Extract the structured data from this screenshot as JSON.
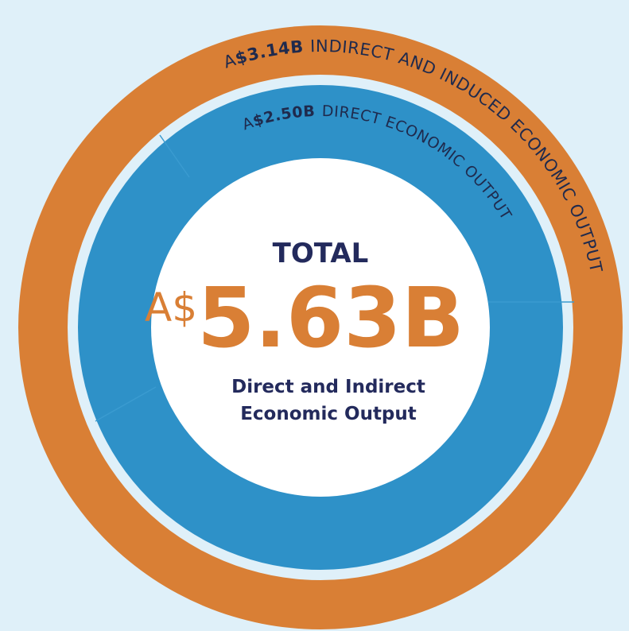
{
  "center": {
    "title": "TOTAL",
    "prefix": "A$",
    "amount": "5.63B",
    "subtitle": [
      "Direct and Indirect",
      "Economic Output"
    ]
  },
  "rings": {
    "outer": {
      "prefix": "A",
      "amount": "$3.14B",
      "label": "INDIRECT AND INDUCED ECONOMIC OUTPUT"
    },
    "inner": {
      "prefix": "A",
      "amount": "$2.50B",
      "label": "DIRECT ECONOMIC OUTPUT"
    }
  }
}
